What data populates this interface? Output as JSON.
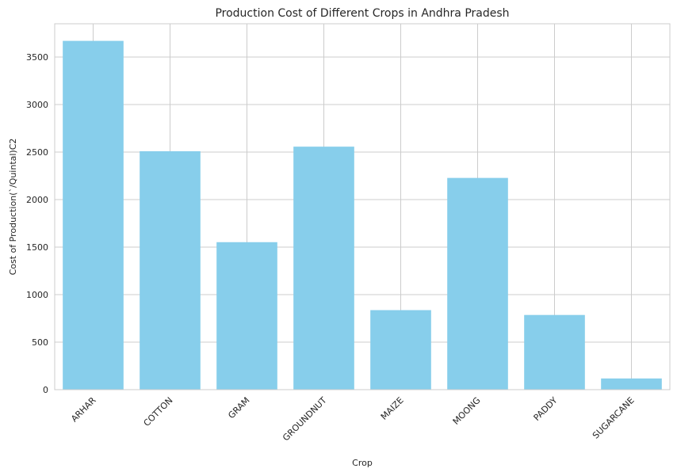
{
  "chart_data": {
    "type": "bar",
    "title": "Production Cost of Different Crops in Andhra Pradesh",
    "xlabel": "Crop",
    "ylabel": "Cost of Production(`/Quintal)C2",
    "categories": [
      "ARHAR",
      "COTTON",
      "GRAM",
      "GROUNDNUT",
      "MAIZE",
      "MOONG",
      "PADDY",
      "SUGARCANE"
    ],
    "values": [
      3670,
      2509,
      1552,
      2557,
      837,
      2228,
      786,
      118
    ],
    "ylim": [
      0,
      3850
    ],
    "yticks": [
      0,
      500,
      1000,
      1500,
      2000,
      2500,
      3000,
      3500
    ],
    "grid": true,
    "bar_color": "#87CEEB"
  }
}
